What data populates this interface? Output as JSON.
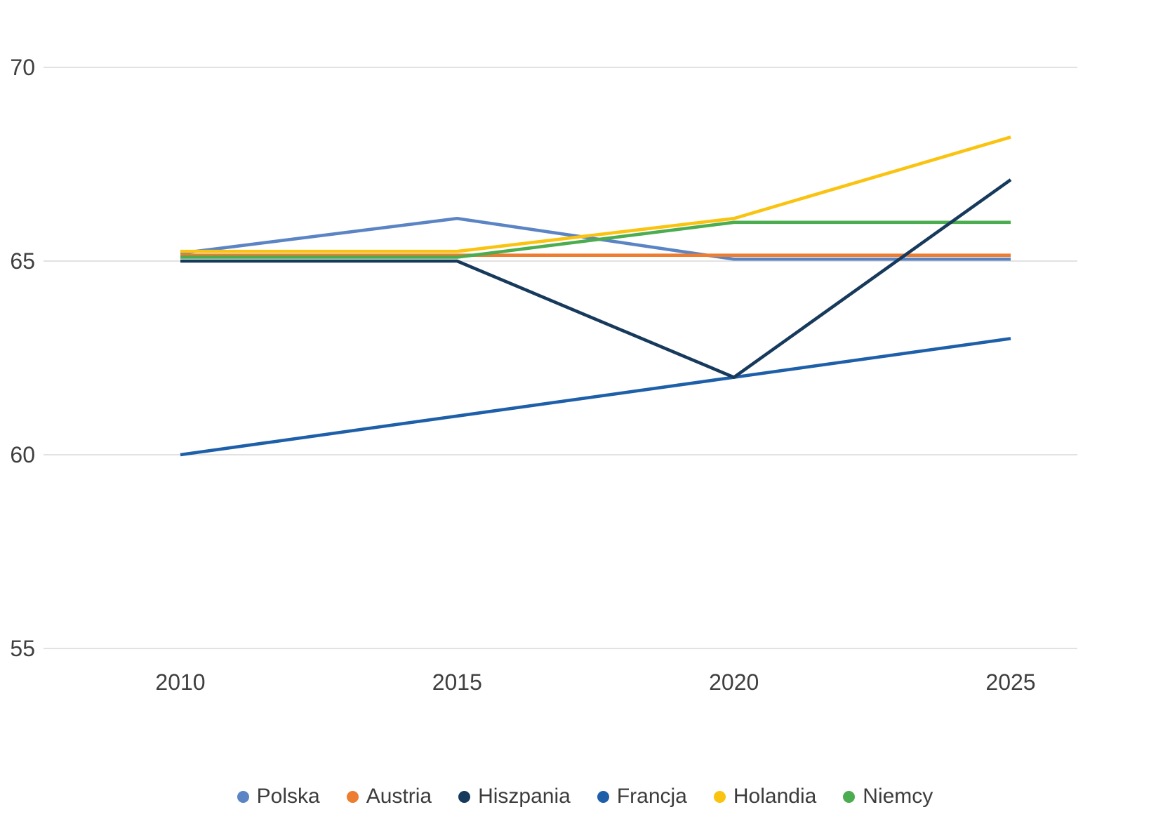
{
  "chart_data": {
    "type": "line",
    "categories": [
      "2010",
      "2015",
      "2020",
      "2025"
    ],
    "series": [
      {
        "name": "Polska",
        "color": "#5B84C4",
        "values": [
          65.2,
          66.1,
          65.05,
          65.05
        ]
      },
      {
        "name": "Austria",
        "color": "#ED7D31",
        "values": [
          65.15,
          65.15,
          65.15,
          65.15
        ]
      },
      {
        "name": "Hiszpania",
        "color": "#16395C",
        "values": [
          65.0,
          65.0,
          62.0,
          67.1
        ]
      },
      {
        "name": "Francja",
        "color": "#1E5FA9",
        "values": [
          60.0,
          61.0,
          62.0,
          63.0
        ]
      },
      {
        "name": "Holandia",
        "color": "#F9C310",
        "values": [
          65.25,
          65.25,
          66.1,
          68.2
        ]
      },
      {
        "name": "Niemcy",
        "color": "#4CAC50",
        "values": [
          65.1,
          65.1,
          66.0,
          66.0
        ]
      }
    ],
    "title": "",
    "xlabel": "",
    "ylabel": "",
    "yticks": [
      70,
      65,
      60,
      55
    ],
    "ytick_labels": [
      "70",
      "65",
      "60",
      "55"
    ],
    "ylim": [
      55,
      70
    ],
    "grid": true,
    "grid_color": "#D9D9D9",
    "tick_label_color": "#3f3f3f",
    "legend_position": "bottom",
    "legend_labels": [
      "Polska",
      "Austria",
      "Hiszpania",
      "Francja",
      "Holandia",
      "Niemcy"
    ]
  }
}
